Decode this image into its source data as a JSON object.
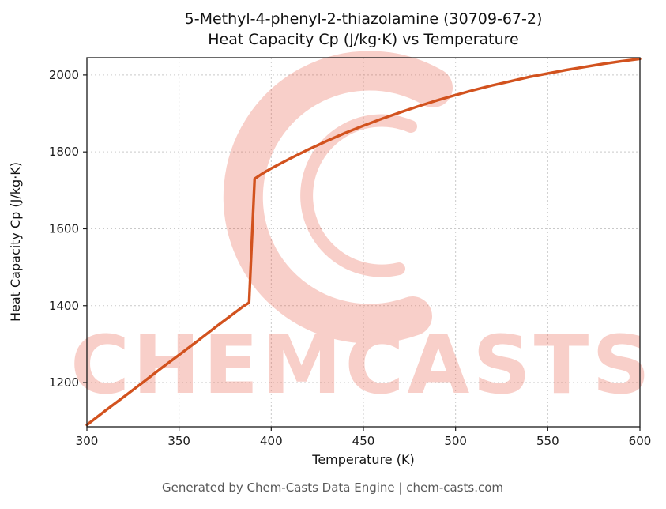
{
  "chart_data": {
    "type": "line",
    "title_line1": "5-Methyl-4-phenyl-2-thiazolamine (30709-67-2)",
    "title_line2": "Heat Capacity Cp (J/kg·K) vs Temperature",
    "xlabel": "Temperature (K)",
    "ylabel": "Heat Capacity Cp (J/kg·K)",
    "xlim": [
      300,
      600
    ],
    "ylim": [
      1085,
      2045
    ],
    "x_ticks": [
      300,
      350,
      400,
      450,
      500,
      550,
      600
    ],
    "y_ticks": [
      1200,
      1400,
      1600,
      1800,
      2000
    ],
    "grid": true,
    "legend": "none",
    "line_color": "#d2521e",
    "series": [
      {
        "name": "Heat Capacity Cp",
        "x": [
          300,
          310,
          320,
          330,
          340,
          350,
          360,
          370,
          380,
          385,
          388,
          391,
          395,
          400,
          410,
          420,
          430,
          440,
          450,
          460,
          470,
          480,
          490,
          500,
          510,
          520,
          530,
          540,
          550,
          560,
          570,
          580,
          590,
          600
        ],
        "y": [
          1090,
          1127,
          1163,
          1199,
          1236,
          1272,
          1308,
          1345,
          1381,
          1399,
          1408,
          1730,
          1743,
          1757,
          1782,
          1806,
          1828,
          1849,
          1868,
          1886,
          1903,
          1919,
          1934,
          1948,
          1961,
          1973,
          1984,
          1995,
          2004,
          2013,
          2021,
          2029,
          2036,
          2042
        ]
      }
    ]
  },
  "watermark": {
    "text": "CHEMCASTS",
    "color": "#e8533a"
  },
  "footer": {
    "text": "Generated by Chem-Casts Data Engine | chem-casts.com"
  }
}
